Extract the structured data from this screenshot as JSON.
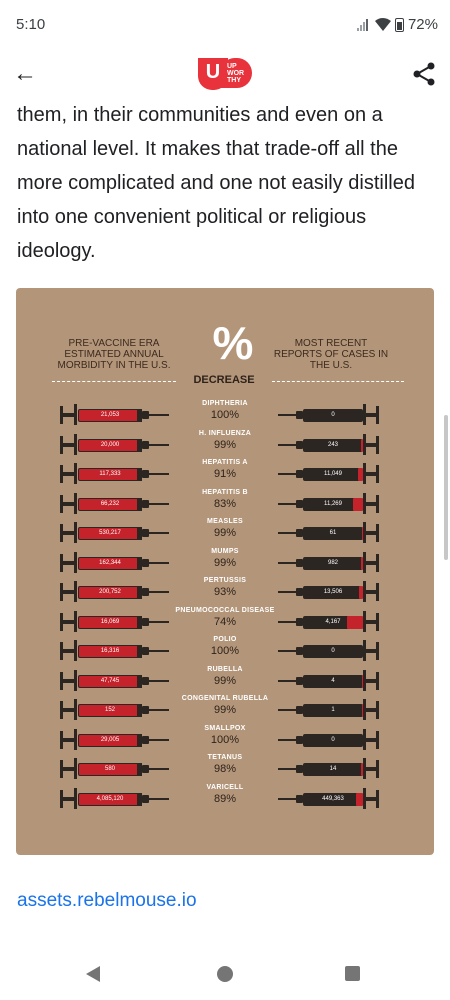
{
  "status_bar": {
    "time": "5:10",
    "battery": "72%"
  },
  "header": {
    "logo_text": "UP WOR THY",
    "back_icon": "arrow-left-icon",
    "share_icon": "share-icon"
  },
  "article": {
    "paragraph": "them, in their communities and even on a national level. It makes that trade-off all the more complicated and one not easily distilled into one convenient political or religious ideology."
  },
  "infographic": {
    "left_header": "PRE-VACCINE ERA ESTIMATED ANNUAL MORBIDITY IN THE U.S.",
    "right_header": "MOST RECENT REPORTS OF CASES IN THE U.S.",
    "percent_symbol": "%",
    "decrease_label": "DECREASE",
    "rows": [
      {
        "disease": "DIPHTHERIA",
        "percent": "100%",
        "pre": "21,053",
        "recent": "0",
        "fill": 0
      },
      {
        "disease": "H. INFLUENZA",
        "percent": "99%",
        "pre": "20,000",
        "recent": "243",
        "fill": 0.03
      },
      {
        "disease": "HEPATITIS A",
        "percent": "91%",
        "pre": "117,333",
        "recent": "11,049",
        "fill": 0.09
      },
      {
        "disease": "HEPATITIS B",
        "percent": "83%",
        "pre": "66,232",
        "recent": "11,269",
        "fill": 0.17
      },
      {
        "disease": "MEASLES",
        "percent": "99%",
        "pre": "530,217",
        "recent": "61",
        "fill": 0.02
      },
      {
        "disease": "MUMPS",
        "percent": "99%",
        "pre": "162,344",
        "recent": "982",
        "fill": 0.03
      },
      {
        "disease": "PERTUSSIS",
        "percent": "93%",
        "pre": "200,752",
        "recent": "13,506",
        "fill": 0.07
      },
      {
        "disease": "PNEUMOCOCCAL DISEASE",
        "percent": "74%",
        "pre": "16,069",
        "recent": "4,167",
        "fill": 0.26
      },
      {
        "disease": "POLIO",
        "percent": "100%",
        "pre": "16,316",
        "recent": "0",
        "fill": 0
      },
      {
        "disease": "RUBELLA",
        "percent": "99%",
        "pre": "47,745",
        "recent": "4",
        "fill": 0.02
      },
      {
        "disease": "CONGENITAL RUBELLA",
        "percent": "99%",
        "pre": "152",
        "recent": "1",
        "fill": 0.02
      },
      {
        "disease": "SMALLPOX",
        "percent": "100%",
        "pre": "29,005",
        "recent": "0",
        "fill": 0
      },
      {
        "disease": "TETANUS",
        "percent": "98%",
        "pre": "580",
        "recent": "14",
        "fill": 0.03
      },
      {
        "disease": "VARICELL",
        "percent": "89%",
        "pre": "4,085,120",
        "recent": "449,363",
        "fill": 0.11
      }
    ]
  },
  "source_link": "assets.rebelmouse.io",
  "nav_bar": {
    "back_icon": "nav-back-icon",
    "home_icon": "nav-home-icon",
    "recents_icon": "nav-recents-icon"
  }
}
